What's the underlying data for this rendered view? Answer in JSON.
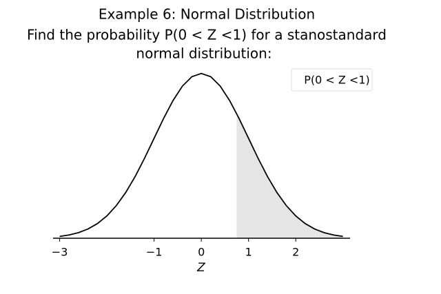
{
  "chart_data": {
    "type": "line",
    "title": "Example 6: Normal Distribution",
    "subtitle": [
      "Find the probability P(0 < Z <1) for a stanostandard",
      "normal distribution:"
    ],
    "x_label": "Z",
    "legend": "P(0 < Z <1)",
    "legend_position": "upper right",
    "x": [
      -3.0,
      -2.8,
      -2.6,
      -2.4,
      -2.2,
      -2.0,
      -1.8,
      -1.6,
      -1.4,
      -1.2,
      -1.0,
      -0.8,
      -0.6,
      -0.4,
      -0.2,
      0,
      0.2,
      0.4,
      0.6,
      0.8,
      1.0,
      1.2,
      1.4,
      1.6,
      1.8,
      2.0,
      2.2,
      2.4,
      2.6,
      2.8,
      3.0
    ],
    "values": [
      0.0044,
      0.0079,
      0.0136,
      0.0224,
      0.0355,
      0.054,
      0.079,
      0.1109,
      0.1497,
      0.1942,
      0.242,
      0.2897,
      0.3332,
      0.3683,
      0.391,
      0.3989,
      0.391,
      0.3683,
      0.3332,
      0.2897,
      0.242,
      0.1942,
      0.1497,
      0.1109,
      0.079,
      0.054,
      0.0355,
      0.0224,
      0.0136,
      0.0079,
      0.0044
    ],
    "color": "#000000",
    "shade": [
      0.75,
      3.0
    ],
    "shade_color": "#e5e5e5",
    "xlim": [
      -3.14,
      3.15
    ],
    "ylim": [
      0,
      0.4
    ],
    "xticks": [
      {
        "value": -3,
        "label": "−3"
      },
      {
        "value": -1,
        "label": "−1"
      },
      0,
      1,
      2
    ]
  }
}
